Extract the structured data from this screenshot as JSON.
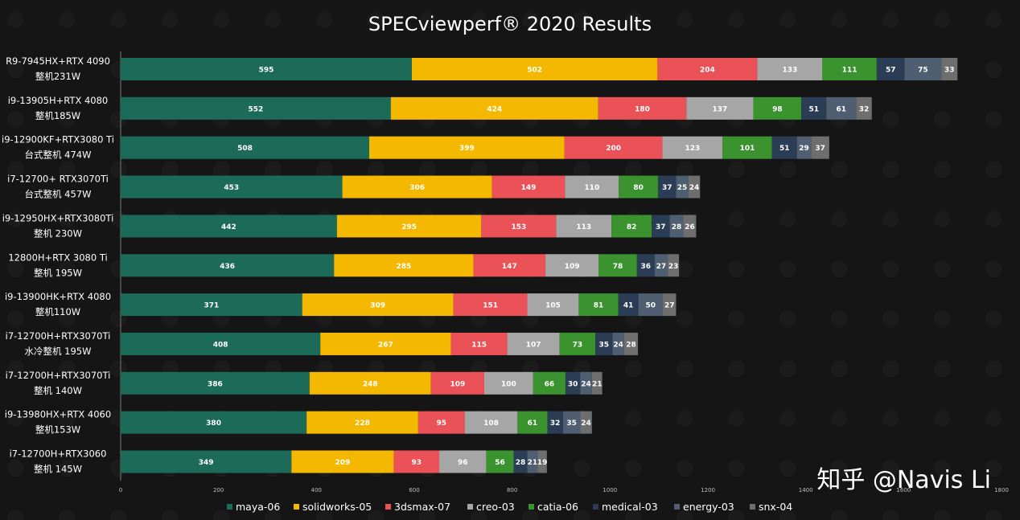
{
  "chart_data": {
    "type": "bar",
    "orientation": "horizontal",
    "stacked": true,
    "title": "SPECviewperf® 2020 Results",
    "categories": [
      [
        "R9-7945HX+RTX 4090",
        "整机231W"
      ],
      [
        "i9-13905H+RTX 4080",
        "整机185W"
      ],
      [
        "i9-12900KF+RTX3080 Ti",
        "台式整机 474W"
      ],
      [
        "i7-12700+ RTX3070Ti",
        "台式整机 457W"
      ],
      [
        "i9-12950HX+RTX3080Ti",
        "整机 230W"
      ],
      [
        "12800H+RTX 3080 Ti",
        "整机 195W"
      ],
      [
        "i9-13900HK+RTX 4080",
        "整机110W"
      ],
      [
        "i7-12700H+RTX3070Ti",
        "水冷整机 195W"
      ],
      [
        "i7-12700H+RTX3070Ti",
        "整机 140W"
      ],
      [
        "i9-13980HX+RTX 4060",
        "整机153W"
      ],
      [
        "i7-12700H+RTX3060",
        "整机 145W"
      ]
    ],
    "series": [
      {
        "name": "maya-06",
        "color": "#1c6b58",
        "label_color": "#ffffff",
        "values": [
          595,
          552,
          508,
          453,
          442,
          436,
          371,
          408,
          386,
          380,
          349
        ]
      },
      {
        "name": "solidworks-05",
        "color": "#f5b800",
        "label_color": "#ffffff",
        "values": [
          502,
          424,
          399,
          306,
          295,
          285,
          309,
          267,
          248,
          228,
          209
        ]
      },
      {
        "name": "3dsmax-07",
        "color": "#ea5257",
        "label_color": "#ffffff",
        "values": [
          204,
          180,
          200,
          149,
          153,
          147,
          151,
          115,
          109,
          95,
          93
        ]
      },
      {
        "name": "creo-03",
        "color": "#a6a6a6",
        "label_color": "#ffffff",
        "values": [
          133,
          137,
          123,
          110,
          113,
          109,
          105,
          107,
          100,
          108,
          96
        ]
      },
      {
        "name": "catia-06",
        "color": "#3a932e",
        "label_color": "#ffffff",
        "values": [
          111,
          98,
          101,
          80,
          82,
          78,
          81,
          73,
          66,
          61,
          56
        ]
      },
      {
        "name": "medical-03",
        "color": "#2b3d55",
        "label_color": "#ffffff",
        "values": [
          57,
          51,
          51,
          37,
          37,
          36,
          41,
          35,
          30,
          32,
          28
        ]
      },
      {
        "name": "energy-03",
        "color": "#4f5e70",
        "label_color": "#ffffff",
        "values": [
          75,
          61,
          29,
          25,
          28,
          27,
          50,
          24,
          24,
          35,
          21
        ]
      },
      {
        "name": "snx-04",
        "color": "#6e6e6e",
        "label_color": "#ffffff",
        "values": [
          33,
          32,
          37,
          24,
          26,
          23,
          27,
          28,
          21,
          24,
          19
        ]
      }
    ],
    "xlim": [
      0,
      1800
    ],
    "xticks": [
      0,
      200,
      400,
      600,
      800,
      1000,
      1200,
      1400,
      1600,
      1800
    ],
    "xlabel": "",
    "ylabel": "",
    "grid": false,
    "legend": "bottom"
  },
  "watermark": "知乎 @Navis Li"
}
